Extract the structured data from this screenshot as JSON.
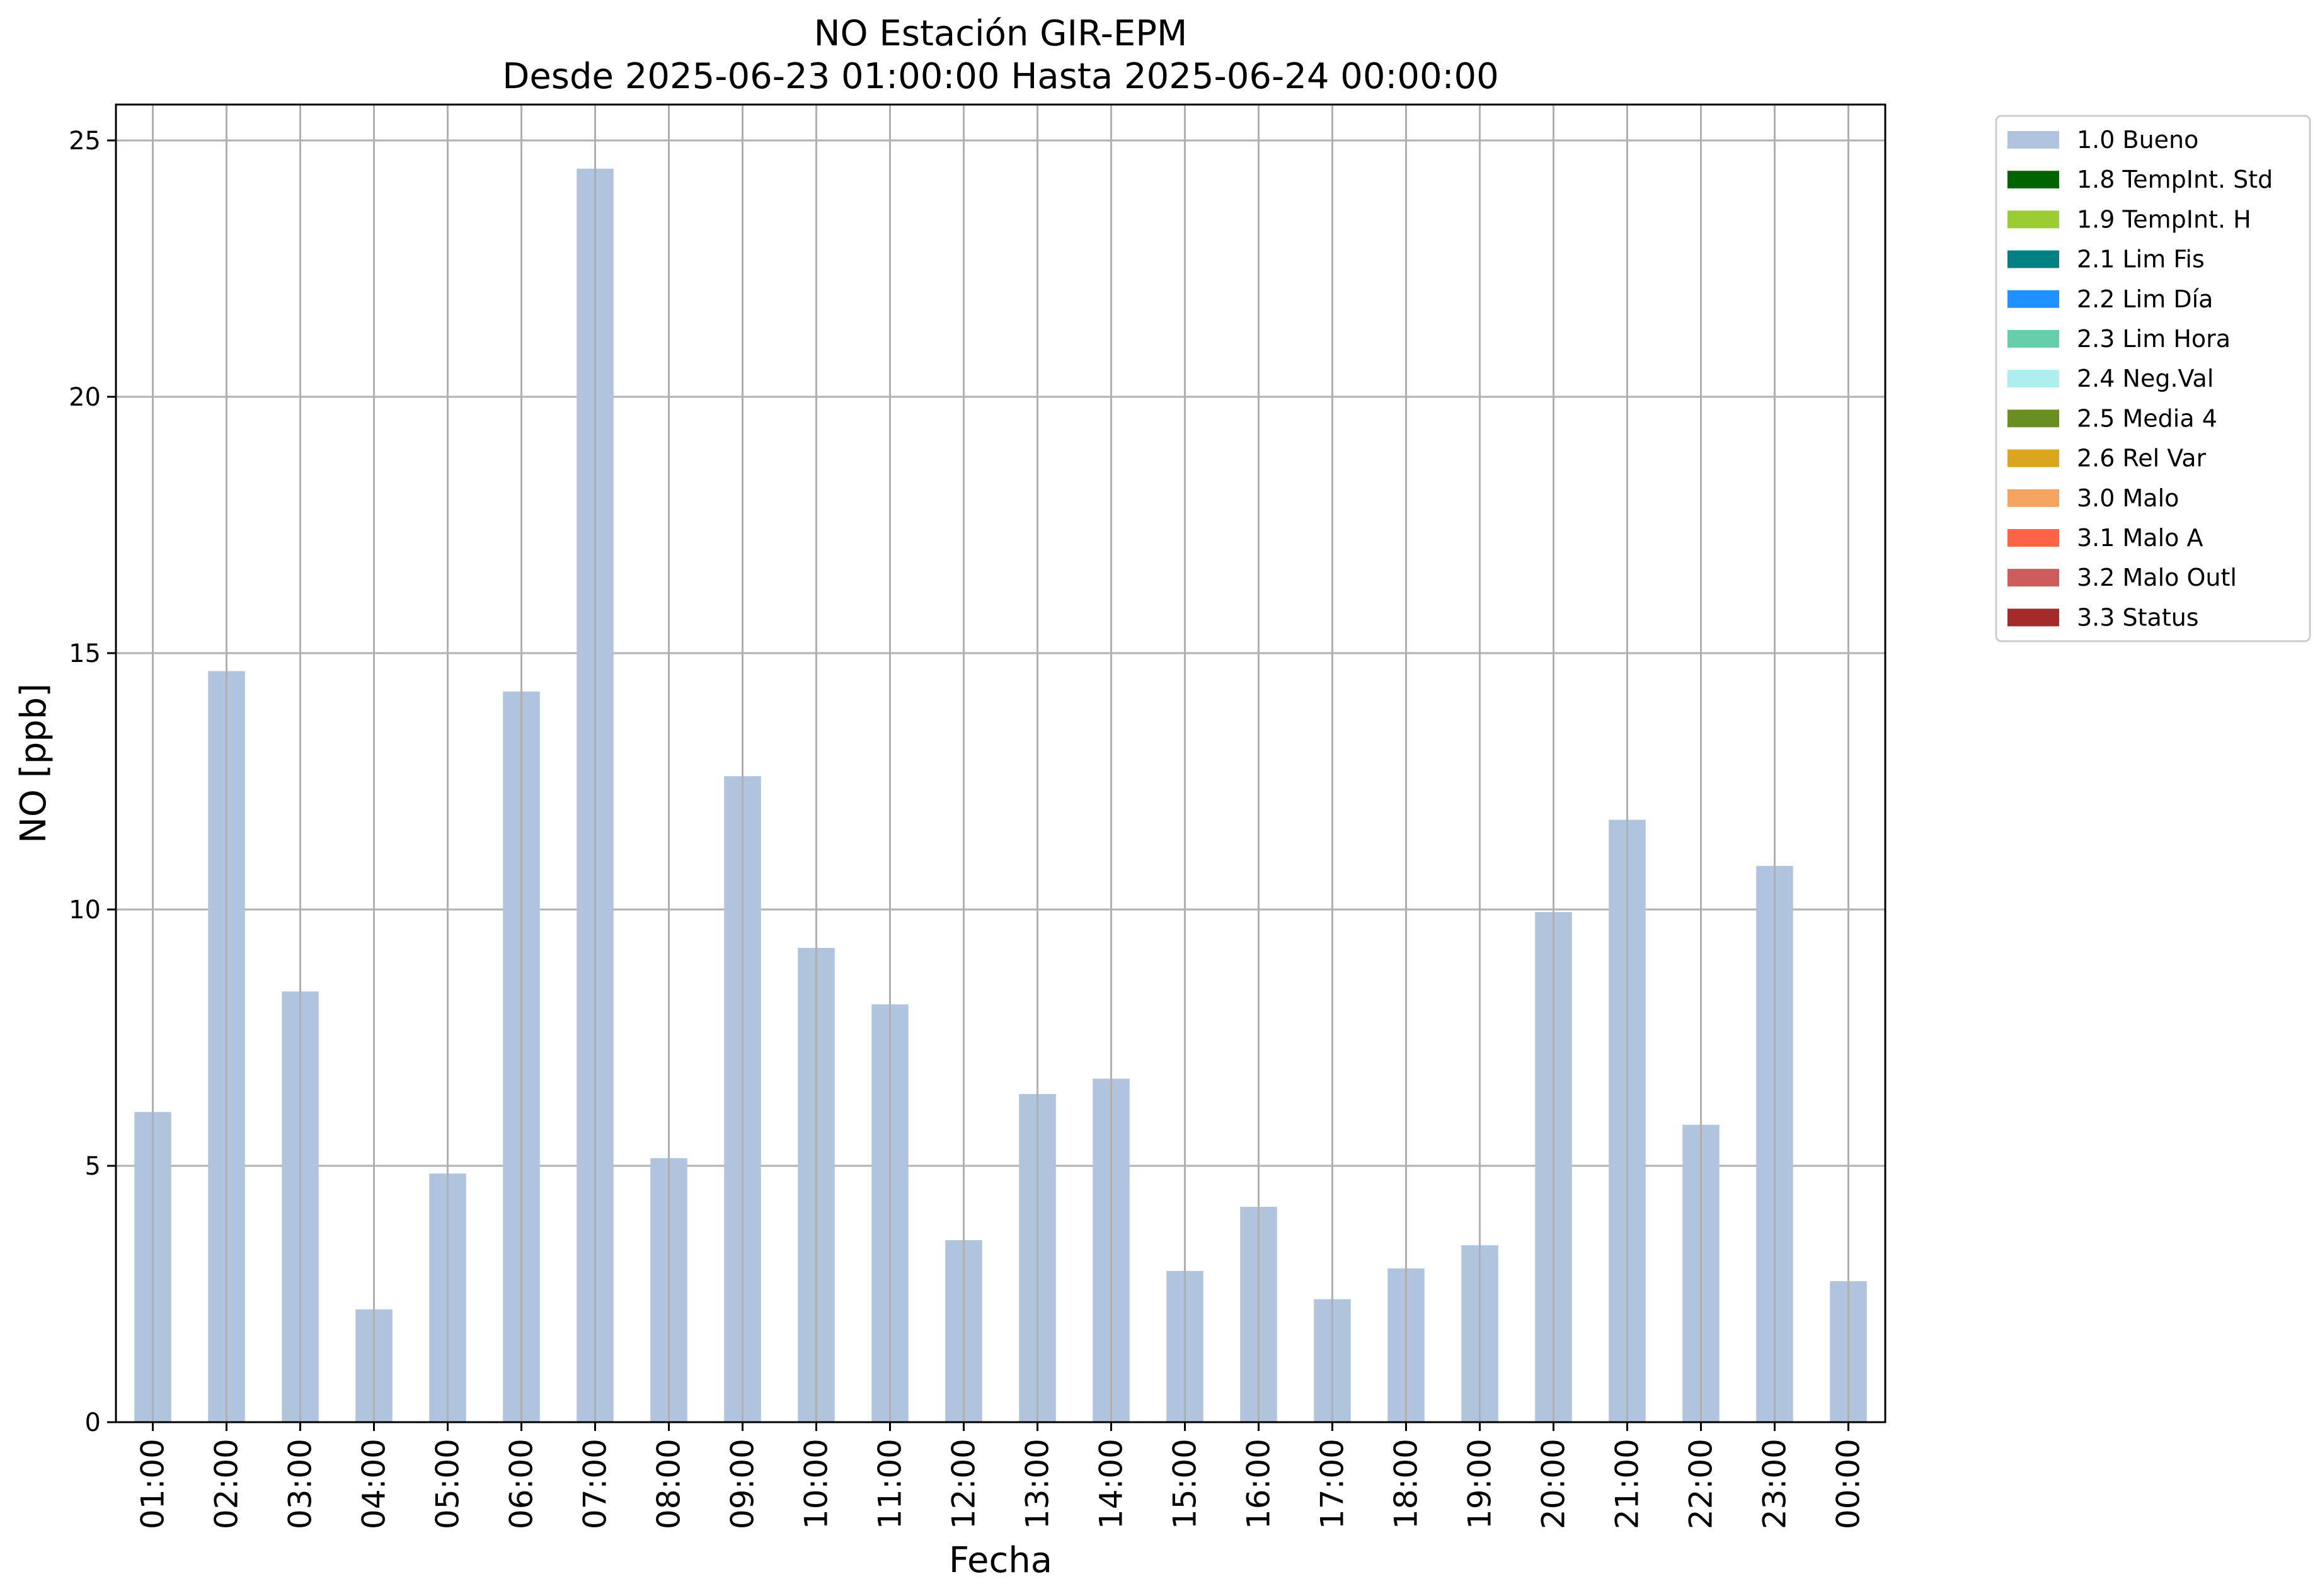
{
  "chart_data": {
    "type": "bar",
    "title": "NO Estación GIR-EPM",
    "subtitle": "Desde 2025-06-23 01:00:00 Hasta 2025-06-24 00:00:00",
    "xlabel": "Fecha",
    "ylabel": "NO [ppb]",
    "ylim": [
      0,
      25.7
    ],
    "yticks": [
      0,
      5,
      10,
      15,
      20,
      25
    ],
    "grid": true,
    "legend_position": "outside-top-right",
    "categories": [
      "01:00",
      "02:00",
      "03:00",
      "04:00",
      "05:00",
      "06:00",
      "07:00",
      "08:00",
      "09:00",
      "10:00",
      "11:00",
      "12:00",
      "13:00",
      "14:00",
      "15:00",
      "16:00",
      "17:00",
      "18:00",
      "19:00",
      "20:00",
      "21:00",
      "22:00",
      "23:00",
      "00:00"
    ],
    "series": [
      {
        "name": "1.0 Bueno",
        "color": "#b0c4de",
        "values": [
          6.05,
          14.65,
          8.4,
          2.2,
          4.85,
          14.25,
          24.45,
          5.15,
          12.6,
          9.25,
          8.15,
          3.55,
          6.4,
          6.7,
          2.95,
          4.2,
          2.4,
          3.0,
          3.45,
          9.95,
          11.75,
          5.8,
          10.85,
          2.75
        ]
      }
    ],
    "legend": [
      {
        "label": "1.0 Bueno",
        "color": "#b0c4de"
      },
      {
        "label": "1.8 TempInt. Std",
        "color": "#006400"
      },
      {
        "label": "1.9 TempInt. H",
        "color": "#9acd32"
      },
      {
        "label": "2.1 Lim Fis",
        "color": "#008080"
      },
      {
        "label": "2.2 Lim Día",
        "color": "#1e90ff"
      },
      {
        "label": "2.3 Lim Hora",
        "color": "#66cdaa"
      },
      {
        "label": "2.4 Neg.Val",
        "color": "#afeeee"
      },
      {
        "label": "2.5 Media 4",
        "color": "#6b8e23"
      },
      {
        "label": "2.6 Rel Var",
        "color": "#daa520"
      },
      {
        "label": "3.0 Malo",
        "color": "#f4a460"
      },
      {
        "label": "3.1 Malo A",
        "color": "#ff6347"
      },
      {
        "label": "3.2 Malo Outl",
        "color": "#cd5c5c"
      },
      {
        "label": "3.3 Status",
        "color": "#a52a2a"
      }
    ]
  }
}
